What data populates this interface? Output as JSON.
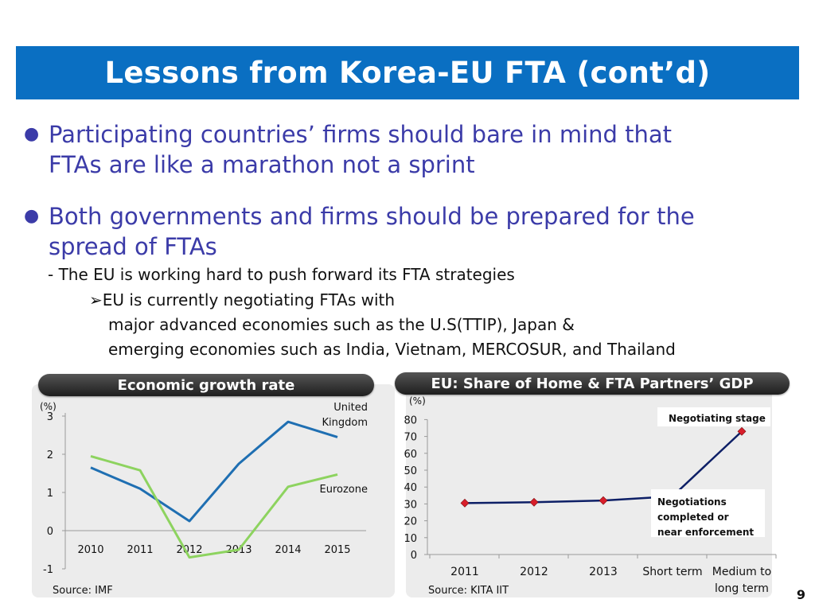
{
  "title": "Lessons from Korea-EU FTA (cont’d)",
  "bullets": [
    {
      "line1": "Participating countries’ firms should bare in mind that",
      "line2": "FTAs are like a marathon not a sprint"
    },
    {
      "line1": "Both governments and firms should be prepared for the",
      "line2": "spread of FTAs"
    }
  ],
  "sub_points": {
    "dash": "- The EU is working hard to push forward its FTA strategies",
    "arrow_symbol": "➢",
    "arrow_line1": "EU is currently negotiating FTAs with",
    "arrow_line2": "major advanced economies such as the U.S(TTIP), Japan &",
    "arrow_line3": "emerging economies such as India, Vietnam, MERCOSUR, and Thailand"
  },
  "page_number": "9",
  "colors": {
    "title_bar": "#0A6FC2",
    "bullet_text": "#3B3BA8",
    "uk_line": "#1F6FB2",
    "eurozone_line": "#8DD35F",
    "eu_line": "#0D1F66",
    "eu_marker": "#D81E2A"
  },
  "chart_data": [
    {
      "type": "line",
      "title": "Economic growth rate",
      "ylabel": "(%)",
      "categories": [
        "2010",
        "2011",
        "2012",
        "2013",
        "2014",
        "2015"
      ],
      "ylim": [
        -1,
        3
      ],
      "yticks": [
        "3",
        "2",
        "1",
        "0",
        "-1"
      ],
      "series": [
        {
          "name": "United Kingdom",
          "label_line1": "United",
          "label_line2": "Kingdom",
          "values": [
            1.65,
            1.1,
            0.25,
            1.75,
            2.85,
            2.45
          ]
        },
        {
          "name": "Eurozone",
          "label_line1": "Eurozone",
          "values": [
            1.95,
            1.58,
            -0.7,
            -0.5,
            1.15,
            1.47
          ]
        }
      ],
      "source": "Source: IMF"
    },
    {
      "type": "line",
      "title": "EU: Share of Home & FTA Partners’ GDP",
      "ylabel": "(%)",
      "categories": [
        "2011",
        "2012",
        "2013",
        "Short term",
        "Medium to long term"
      ],
      "category_lines": [
        [
          "2011"
        ],
        [
          "2012"
        ],
        [
          "2013"
        ],
        [
          "Short term"
        ],
        [
          "Medium to",
          "long term"
        ]
      ],
      "ylim": [
        0,
        80
      ],
      "yticks": [
        "80",
        "70",
        "60",
        "50",
        "40",
        "30",
        "20",
        "10",
        "0"
      ],
      "series": [
        {
          "name": "EU share",
          "values": [
            30.5,
            31,
            32,
            34.5,
            73
          ]
        }
      ],
      "annotations": {
        "negotiating": "Negotiating stage",
        "completed_line1": "Negotiations",
        "completed_line2": "completed or",
        "completed_line3": "near enforcement"
      },
      "source": "Source: KITA IIT"
    }
  ]
}
